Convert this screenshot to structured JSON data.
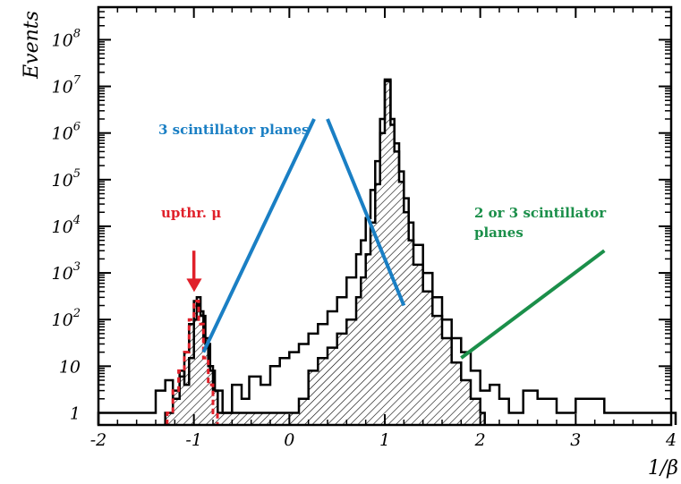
{
  "chart_data": {
    "type": "histogram",
    "x_axis": {
      "label": "1/β",
      "range": [
        -2,
        4
      ],
      "ticks": [
        {
          "value": -2,
          "label": "-2"
        },
        {
          "value": -1,
          "label": "-1"
        },
        {
          "value": 0,
          "label": "0"
        },
        {
          "value": 1,
          "label": "1"
        },
        {
          "value": 2,
          "label": "2"
        },
        {
          "value": 3,
          "label": "3"
        },
        {
          "value": 4,
          "label": "4"
        }
      ]
    },
    "y_axis": {
      "label": "Events",
      "scale": "log",
      "range": [
        0.55,
        500000000
      ],
      "ticks": [
        {
          "value": 1,
          "base": "1",
          "exp": ""
        },
        {
          "value": 10,
          "base": "10",
          "exp": ""
        },
        {
          "value": 100,
          "base": "10",
          "exp": "2"
        },
        {
          "value": 1000,
          "base": "10",
          "exp": "3"
        },
        {
          "value": 10000,
          "base": "10",
          "exp": "4"
        },
        {
          "value": 100000,
          "base": "10",
          "exp": "5"
        },
        {
          "value": 1000000,
          "base": "10",
          "exp": "6"
        },
        {
          "value": 10000000,
          "base": "10",
          "exp": "7"
        },
        {
          "value": 100000000,
          "base": "10",
          "exp": "8"
        }
      ]
    },
    "series": [
      {
        "key": "two_or_three",
        "color": "#000000",
        "fill": "none",
        "points": [
          [
            -2.0,
            1
          ],
          [
            -1.7,
            1
          ],
          [
            -1.5,
            1
          ],
          [
            -1.4,
            3
          ],
          [
            -1.3,
            5
          ],
          [
            -1.22,
            2
          ],
          [
            -1.15,
            8
          ],
          [
            -1.1,
            4
          ],
          [
            -1.05,
            15
          ],
          [
            -1.0,
            100
          ],
          [
            -0.97,
            300
          ],
          [
            -0.93,
            120
          ],
          [
            -0.88,
            30
          ],
          [
            -0.83,
            8
          ],
          [
            -0.78,
            3
          ],
          [
            -0.7,
            1
          ],
          [
            -0.6,
            4
          ],
          [
            -0.5,
            2
          ],
          [
            -0.42,
            6
          ],
          [
            -0.3,
            4
          ],
          [
            -0.2,
            10
          ],
          [
            -0.1,
            15
          ],
          [
            0.0,
            20
          ],
          [
            0.1,
            30
          ],
          [
            0.2,
            50
          ],
          [
            0.3,
            80
          ],
          [
            0.4,
            150
          ],
          [
            0.5,
            300
          ],
          [
            0.6,
            800
          ],
          [
            0.7,
            2500
          ],
          [
            0.75,
            5000
          ],
          [
            0.8,
            15000
          ],
          [
            0.85,
            60000
          ],
          [
            0.9,
            250000
          ],
          [
            0.95,
            2000000
          ],
          [
            1.0,
            14000000
          ],
          [
            1.03,
            14000000
          ],
          [
            1.06,
            2000000
          ],
          [
            1.1,
            600000
          ],
          [
            1.15,
            150000
          ],
          [
            1.2,
            40000
          ],
          [
            1.25,
            12000
          ],
          [
            1.3,
            4000
          ],
          [
            1.4,
            1000
          ],
          [
            1.5,
            300
          ],
          [
            1.6,
            100
          ],
          [
            1.7,
            40
          ],
          [
            1.8,
            20
          ],
          [
            1.9,
            8
          ],
          [
            2.0,
            3
          ],
          [
            2.1,
            4
          ],
          [
            2.2,
            2
          ],
          [
            2.3,
            1
          ],
          [
            2.45,
            3
          ],
          [
            2.6,
            2
          ],
          [
            2.8,
            1
          ],
          [
            3.0,
            2
          ],
          [
            3.3,
            1
          ],
          [
            3.7,
            1
          ],
          [
            4.0,
            1
          ]
        ]
      },
      {
        "key": "three_planes",
        "color": "#000000",
        "fill": "hatched",
        "points": [
          [
            -1.3,
            1
          ],
          [
            -1.22,
            3
          ],
          [
            -1.15,
            6
          ],
          [
            -1.1,
            20
          ],
          [
            -1.05,
            80
          ],
          [
            -1.0,
            250
          ],
          [
            -0.95,
            150
          ],
          [
            -0.9,
            40
          ],
          [
            -0.85,
            10
          ],
          [
            -0.8,
            3
          ],
          [
            -0.75,
            1
          ],
          [
            -0.1,
            1
          ],
          [
            0.0,
            1
          ],
          [
            0.1,
            2
          ],
          [
            0.2,
            8
          ],
          [
            0.3,
            15
          ],
          [
            0.4,
            25
          ],
          [
            0.5,
            50
          ],
          [
            0.6,
            100
          ],
          [
            0.7,
            300
          ],
          [
            0.75,
            800
          ],
          [
            0.8,
            2500
          ],
          [
            0.85,
            12000
          ],
          [
            0.9,
            80000
          ],
          [
            0.95,
            1000000
          ],
          [
            1.0,
            13000000
          ],
          [
            1.03,
            13000000
          ],
          [
            1.06,
            1500000
          ],
          [
            1.1,
            400000
          ],
          [
            1.15,
            90000
          ],
          [
            1.2,
            20000
          ],
          [
            1.25,
            5000
          ],
          [
            1.3,
            1500
          ],
          [
            1.4,
            400
          ],
          [
            1.5,
            120
          ],
          [
            1.6,
            40
          ],
          [
            1.7,
            12
          ],
          [
            1.8,
            5
          ],
          [
            1.9,
            2
          ],
          [
            2.0,
            1
          ]
        ]
      },
      {
        "key": "upthrough_muons",
        "color": "#e0202a",
        "dash": true,
        "points": [
          [
            -1.28,
            1
          ],
          [
            -1.22,
            3
          ],
          [
            -1.16,
            8
          ],
          [
            -1.1,
            20
          ],
          [
            -1.05,
            100
          ],
          [
            -1.0,
            250
          ],
          [
            -0.95,
            80
          ],
          [
            -0.9,
            15
          ],
          [
            -0.85,
            4
          ],
          [
            -0.8,
            1
          ]
        ]
      }
    ],
    "annotations": [
      {
        "key": "three_planes",
        "text": "3 scintillator planes",
        "color": "#1a7fc4",
        "lines": [
          [
            [
              0.26,
              2000000
            ],
            [
              -0.9,
              20
            ]
          ],
          [
            [
              0.4,
              2000000
            ],
            [
              1.2,
              200
            ]
          ]
        ]
      },
      {
        "key": "two_or_three",
        "text_lines": [
          "2 or 3 scintillator",
          "planes"
        ],
        "color": "#1b8f4a",
        "lines": [
          [
            [
              3.3,
              3000
            ],
            [
              1.8,
              15
            ]
          ]
        ]
      },
      {
        "key": "upthrough",
        "text": "upthr. μ",
        "color": "#e0202a",
        "arrow_from": 3000,
        "arrow_to": 400,
        "arrow_x": -1.0
      }
    ]
  }
}
